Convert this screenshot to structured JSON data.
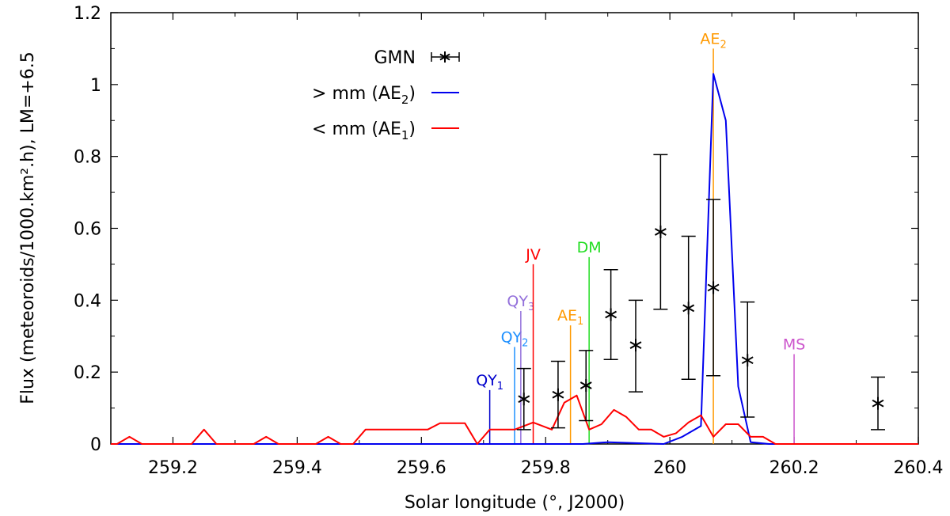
{
  "chart_data": {
    "type": "line",
    "xlabel": "Solar longitude (°, J2000)",
    "ylabel": "Flux (meteoroids/1000.km².h), LM=+6.5",
    "xlim": [
      259.1,
      260.4
    ],
    "ylim": [
      0,
      1.2
    ],
    "x_ticks": [
      259.2,
      259.4,
      259.6,
      259.8,
      260,
      260.2,
      260.4
    ],
    "x_tick_labels": [
      "259.2",
      "259.4",
      "259.6",
      "259.8",
      "260",
      "260.2",
      "260.4"
    ],
    "y_ticks": [
      0,
      0.2,
      0.4,
      0.6,
      0.8,
      1,
      1.2
    ],
    "y_tick_labels": [
      "0",
      "0.2",
      "0.4",
      "0.6",
      "0.8",
      "1",
      "1.2"
    ],
    "grid": false,
    "legend_position": "top-center",
    "legend": [
      {
        "label": "GMN",
        "kind": "errorbar",
        "color": "#000000"
      },
      {
        "label": "> mm (AE",
        "sub": "2",
        "end": ")",
        "kind": "line",
        "color": "#0000ee"
      },
      {
        "label": "< mm (AE",
        "sub": "1",
        "end": ")",
        "kind": "line",
        "color": "#ff0000"
      }
    ],
    "gmn": {
      "name": "GMN",
      "color": "#000000",
      "points": [
        {
          "x": 259.765,
          "y": 0.125,
          "low": 0.04,
          "high": 0.21
        },
        {
          "x": 259.82,
          "y": 0.137,
          "low": 0.045,
          "high": 0.23
        },
        {
          "x": 259.865,
          "y": 0.163,
          "low": 0.065,
          "high": 0.26
        },
        {
          "x": 259.905,
          "y": 0.36,
          "low": 0.235,
          "high": 0.485
        },
        {
          "x": 259.945,
          "y": 0.275,
          "low": 0.145,
          "high": 0.4
        },
        {
          "x": 259.985,
          "y": 0.59,
          "low": 0.375,
          "high": 0.805
        },
        {
          "x": 260.03,
          "y": 0.378,
          "low": 0.18,
          "high": 0.578
        },
        {
          "x": 260.07,
          "y": 0.435,
          "low": 0.19,
          "high": 0.68
        },
        {
          "x": 260.125,
          "y": 0.233,
          "low": 0.075,
          "high": 0.395
        },
        {
          "x": 260.335,
          "y": 0.113,
          "low": 0.04,
          "high": 0.186
        }
      ]
    },
    "series": [
      {
        "name": "> mm (AE2)",
        "color": "#0000ee",
        "x": [
          259.1,
          259.86,
          259.9,
          259.99,
          260.02,
          260.05,
          260.07,
          260.09,
          260.11,
          260.13,
          260.16,
          260.4
        ],
        "y": [
          0,
          0,
          0.005,
          0,
          0.02,
          0.05,
          1.03,
          0.9,
          0.16,
          0.005,
          0,
          0
        ]
      },
      {
        "name": "< mm (AE1)",
        "color": "#ff0000",
        "x": [
          259.1,
          259.11,
          259.13,
          259.15,
          259.23,
          259.25,
          259.27,
          259.33,
          259.35,
          259.37,
          259.43,
          259.45,
          259.47,
          259.49,
          259.51,
          259.61,
          259.63,
          259.67,
          259.69,
          259.71,
          259.75,
          259.78,
          259.81,
          259.83,
          259.85,
          259.87,
          259.89,
          259.91,
          259.93,
          259.95,
          259.97,
          259.99,
          260.01,
          260.03,
          260.05,
          260.07,
          260.09,
          260.11,
          260.13,
          260.15,
          260.17,
          260.19,
          260.4
        ],
        "y": [
          0,
          0,
          0.02,
          0,
          0,
          0.04,
          0,
          0,
          0.02,
          0,
          0,
          0.02,
          0,
          0,
          0.04,
          0.04,
          0.058,
          0.058,
          0,
          0.04,
          0.04,
          0.06,
          0.04,
          0.115,
          0.135,
          0.04,
          0.055,
          0.095,
          0.075,
          0.04,
          0.04,
          0.02,
          0.03,
          0.06,
          0.08,
          0.02,
          0.055,
          0.055,
          0.02,
          0.02,
          0,
          0,
          0
        ]
      }
    ],
    "annotations": [
      {
        "label": "QY",
        "sub": "1",
        "x": 259.71,
        "top": 0.15,
        "color": "#0000cc"
      },
      {
        "label": "QY",
        "sub": "2",
        "x": 259.75,
        "top": 0.27,
        "color": "#1e90ff"
      },
      {
        "label": "QY",
        "sub": "3",
        "x": 259.76,
        "top": 0.37,
        "color": "#9370db"
      },
      {
        "label": "JV",
        "x": 259.78,
        "top": 0.5,
        "color": "#ff0000"
      },
      {
        "label": "AE",
        "sub": "1",
        "x": 259.84,
        "top": 0.33,
        "color": "#ff9900"
      },
      {
        "label": "DM",
        "x": 259.87,
        "top": 0.52,
        "color": "#22dd22"
      },
      {
        "label": "AE",
        "sub": "2",
        "x": 260.07,
        "top": 1.1,
        "color": "#ff9900"
      },
      {
        "label": "MS",
        "x": 260.2,
        "top": 0.25,
        "color": "#cc55cc"
      }
    ]
  }
}
